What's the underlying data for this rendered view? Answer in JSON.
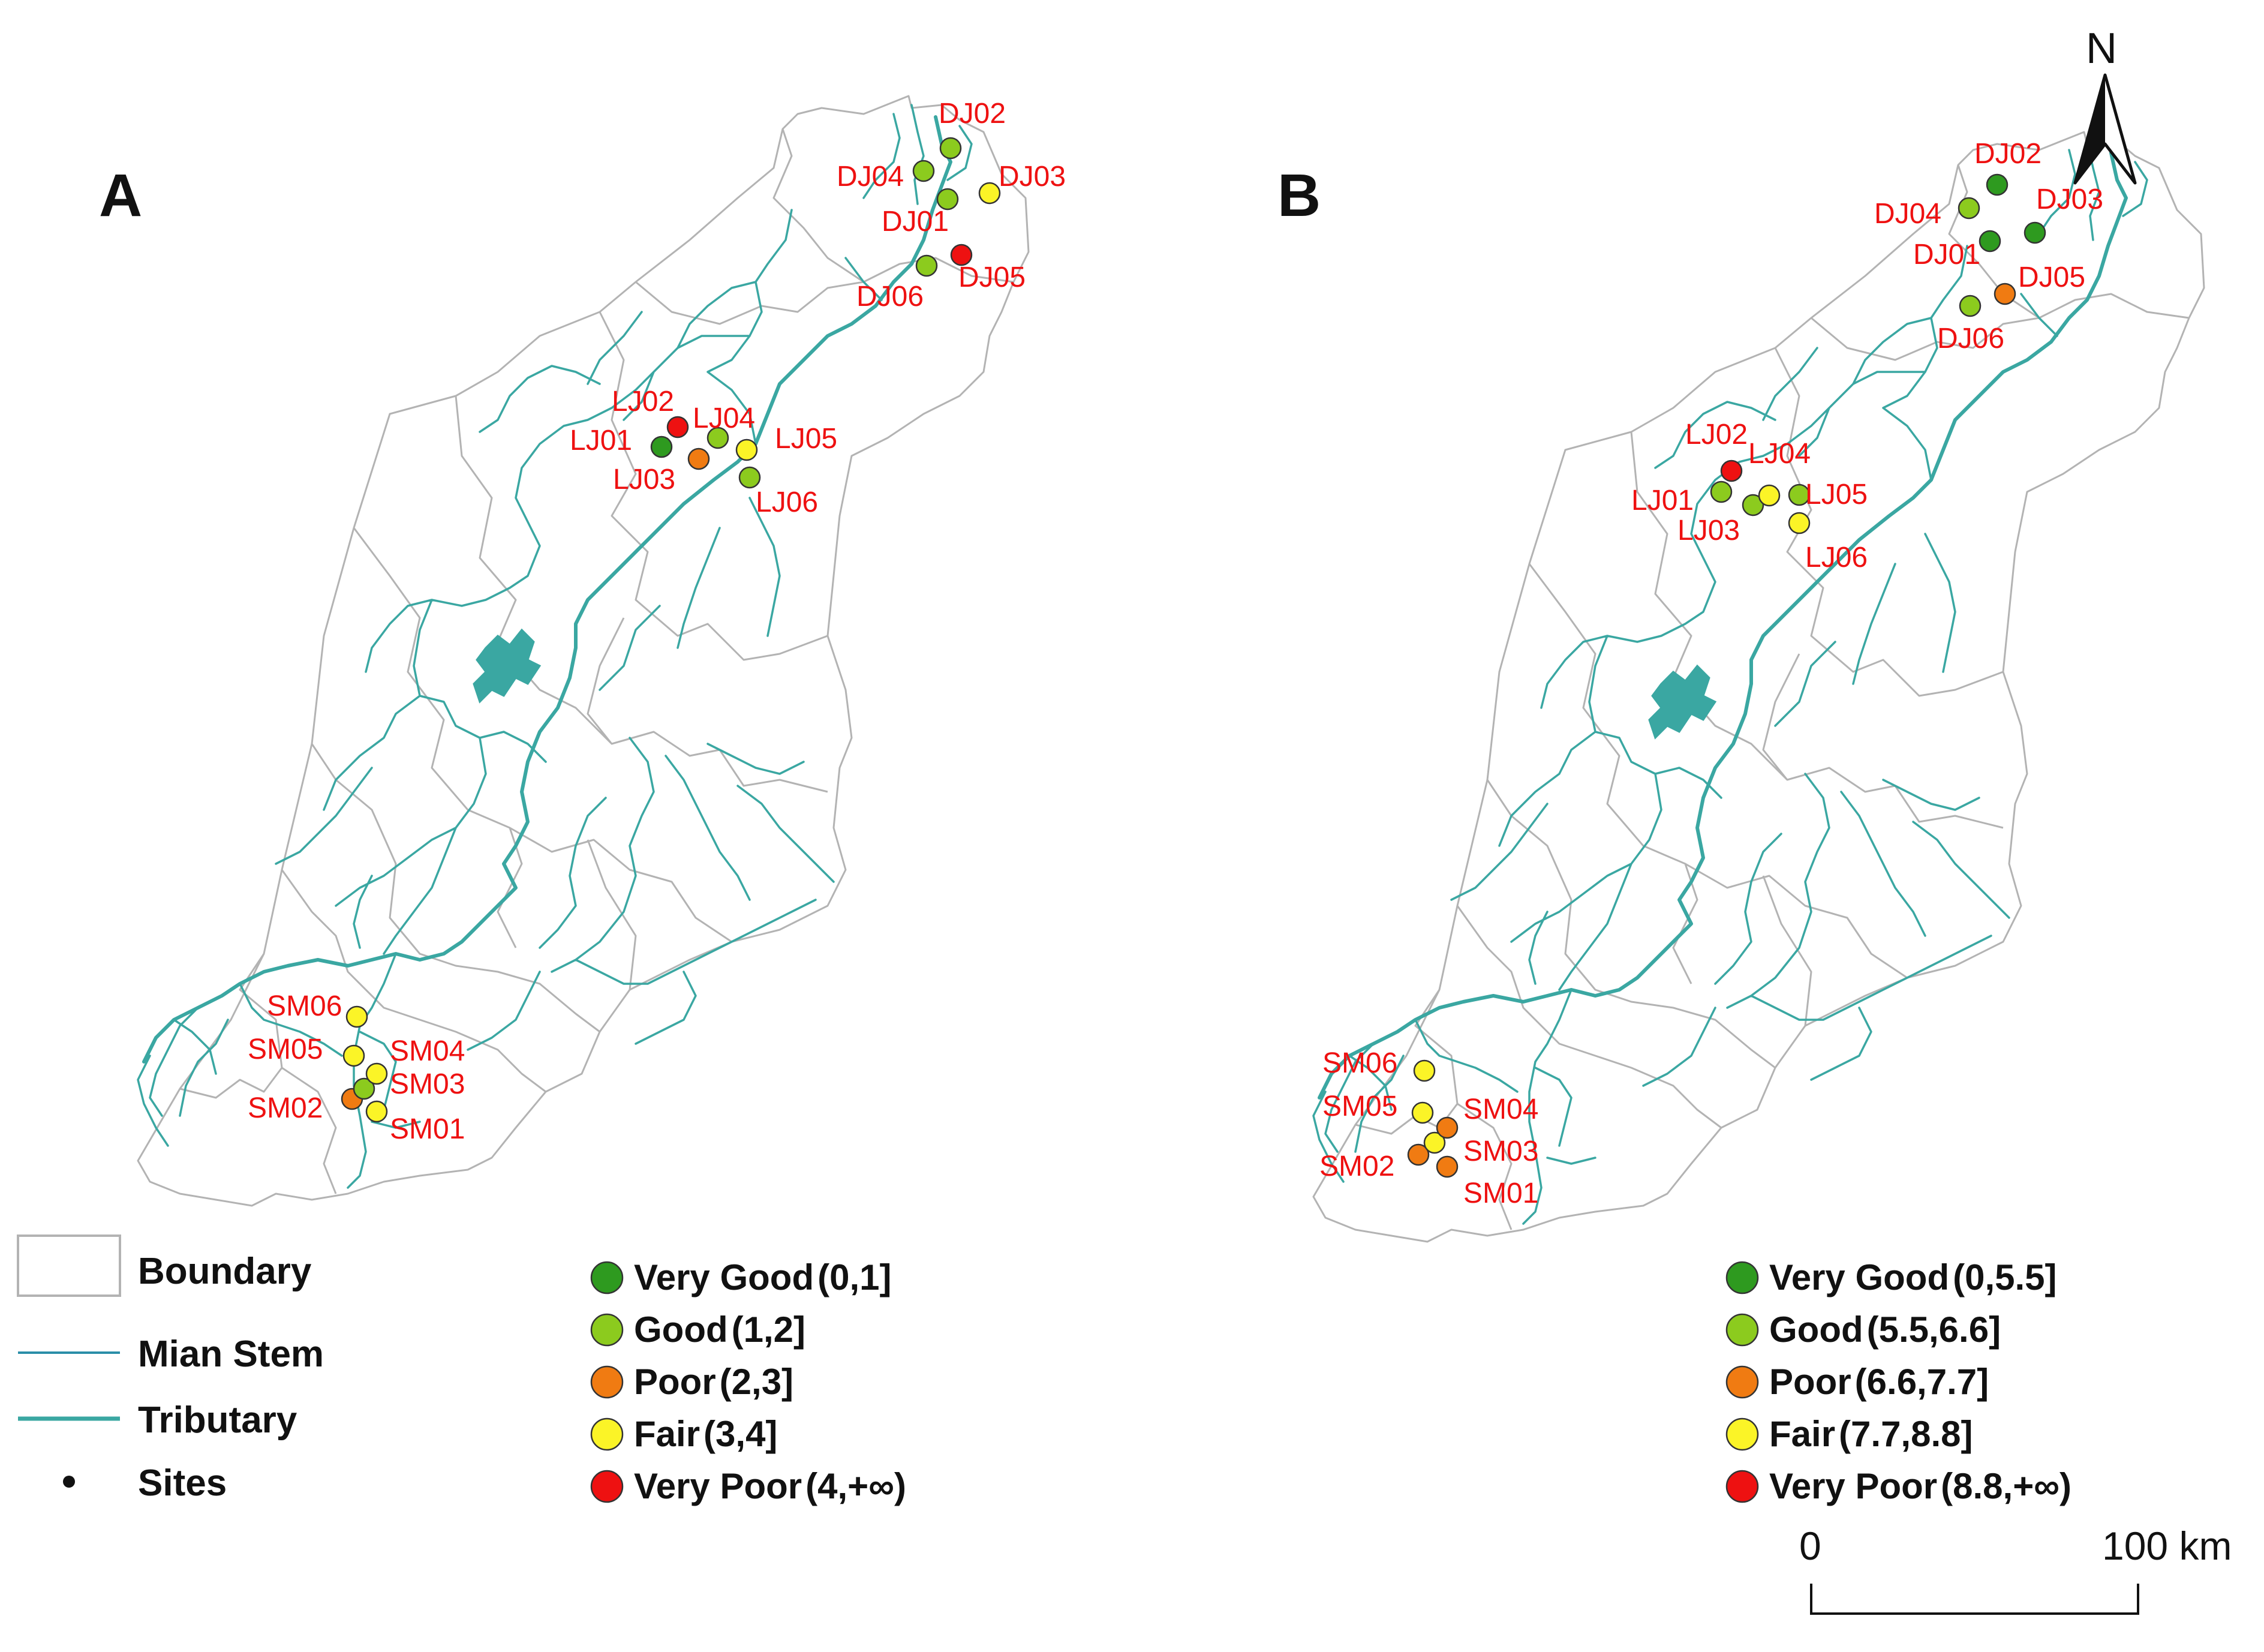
{
  "panels": [
    {
      "id": "A",
      "label": "A",
      "legend": [
        {
          "name": "Very Good",
          "range": "(0,1]",
          "color": "#2e9a1f"
        },
        {
          "name": "Good",
          "range": "(1,2]",
          "color": "#8ccb1e"
        },
        {
          "name": "Poor",
          "range": "(2,3]",
          "color": "#f07b12"
        },
        {
          "name": "Fair",
          "range": "(3,4]",
          "color": "#fbf427"
        },
        {
          "name": "Very Poor",
          "range": "(4,+∞)",
          "color": "#ee1111"
        }
      ],
      "sites": [
        {
          "id": "DJ01",
          "class": "Good"
        },
        {
          "id": "DJ02",
          "class": "Good"
        },
        {
          "id": "DJ03",
          "class": "Fair"
        },
        {
          "id": "DJ04",
          "class": "Good"
        },
        {
          "id": "DJ05",
          "class": "Very Poor"
        },
        {
          "id": "DJ06",
          "class": "Good"
        },
        {
          "id": "LJ01",
          "class": "Very Good"
        },
        {
          "id": "LJ02",
          "class": "Very Poor"
        },
        {
          "id": "LJ03",
          "class": "Poor"
        },
        {
          "id": "LJ04",
          "class": "Good"
        },
        {
          "id": "LJ05",
          "class": "Fair"
        },
        {
          "id": "LJ06",
          "class": "Good"
        },
        {
          "id": "SM01",
          "class": "Fair"
        },
        {
          "id": "SM02",
          "class": "Poor"
        },
        {
          "id": "SM03",
          "class": "Good"
        },
        {
          "id": "SM04",
          "class": "Fair"
        },
        {
          "id": "SM05",
          "class": "Fair"
        },
        {
          "id": "SM06",
          "class": "Fair"
        }
      ]
    },
    {
      "id": "B",
      "label": "B",
      "legend": [
        {
          "name": "Very Good",
          "range": "(0,5.5]",
          "color": "#2e9a1f"
        },
        {
          "name": "Good",
          "range": "(5.5,6.6]",
          "color": "#8ccb1e"
        },
        {
          "name": "Poor",
          "range": "(6.6,7.7]",
          "color": "#f07b12"
        },
        {
          "name": "Fair",
          "range": "(7.7,8.8]",
          "color": "#fbf427"
        },
        {
          "name": "Very Poor",
          "range": "(8.8,+∞)",
          "color": "#ee1111"
        }
      ],
      "sites": [
        {
          "id": "DJ01",
          "class": "Very Good"
        },
        {
          "id": "DJ02",
          "class": "Very Good"
        },
        {
          "id": "DJ03",
          "class": "Very Good"
        },
        {
          "id": "DJ04",
          "class": "Good"
        },
        {
          "id": "DJ05",
          "class": "Poor"
        },
        {
          "id": "DJ06",
          "class": "Good"
        },
        {
          "id": "LJ01",
          "class": "Good"
        },
        {
          "id": "LJ02",
          "class": "Very Poor"
        },
        {
          "id": "LJ03",
          "class": "Good"
        },
        {
          "id": "LJ04",
          "class": "Fair"
        },
        {
          "id": "LJ05",
          "class": "Good"
        },
        {
          "id": "LJ06",
          "class": "Fair"
        },
        {
          "id": "SM01",
          "class": "Poor"
        },
        {
          "id": "SM02",
          "class": "Poor"
        },
        {
          "id": "SM03",
          "class": "Fair"
        },
        {
          "id": "SM04",
          "class": "Poor"
        },
        {
          "id": "SM05",
          "class": "Fair"
        },
        {
          "id": "SM06",
          "class": "Fair"
        }
      ]
    }
  ],
  "map_legend": {
    "boundary": "Boundary",
    "main_stem": "Mian Stem",
    "tributary": "Tributary",
    "sites": "Sites"
  },
  "north_label": "N",
  "scale_bar": {
    "start": "0",
    "end": "100 km"
  },
  "colors": {
    "river": "#3aa7a2",
    "boundary": "#b3b3b3",
    "site_label": "#ee1111"
  }
}
